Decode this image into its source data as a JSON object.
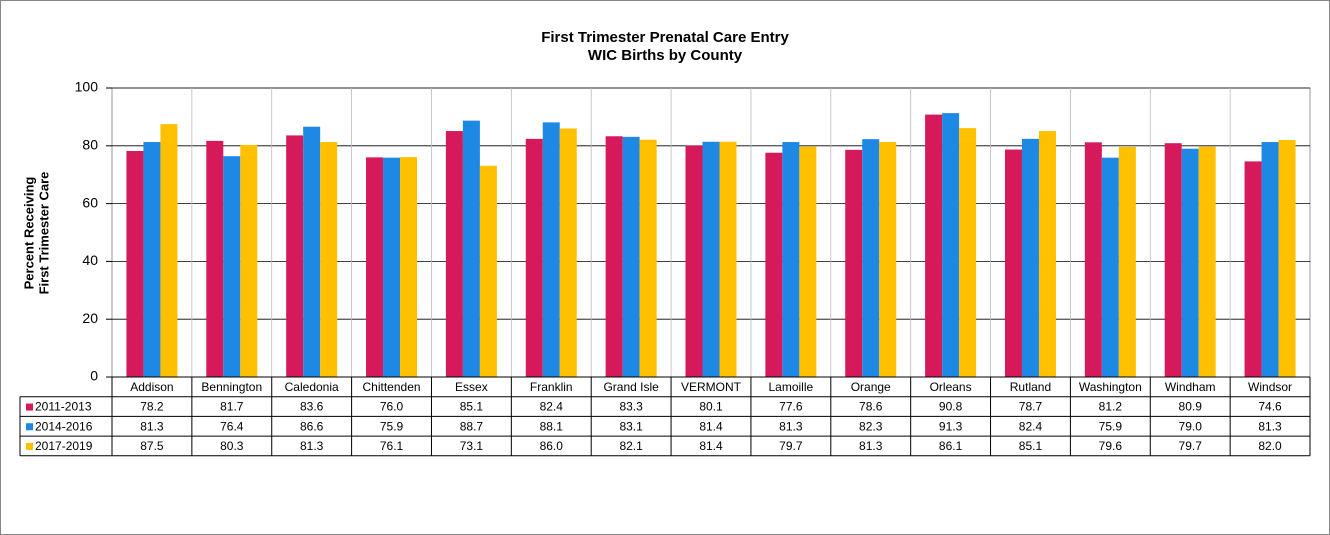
{
  "chart_data": {
    "type": "bar",
    "title": "First Trimester Prenatal Care Entry",
    "subtitle": "WIC Births by County",
    "ylabel": [
      "Percent Receiving",
      "First Trimester Care"
    ],
    "categories": [
      "Addison",
      "Bennington",
      "Caledonia",
      "Chittenden",
      "Essex",
      "Franklin",
      "Grand Isle",
      "VERMONT",
      "Lamoille",
      "Orange",
      "Orleans",
      "Rutland",
      "Washington",
      "Windham",
      "Windsor"
    ],
    "series": [
      {
        "name": "2011-2013",
        "color": "#d6195b",
        "values": [
          78.2,
          81.7,
          83.6,
          76.0,
          85.1,
          82.4,
          83.3,
          80.1,
          77.6,
          78.6,
          90.8,
          78.7,
          81.2,
          80.9,
          74.6
        ],
        "value_labels": [
          "78.2",
          "81.7",
          "83.6",
          "76.0",
          "85.1",
          "82.4",
          "83.3",
          "80.1",
          "77.6",
          "78.6",
          "90.8",
          "78.7",
          "81.2",
          "80.9",
          "74.6"
        ]
      },
      {
        "name": "2014-2016",
        "color": "#1e88e5",
        "values": [
          81.3,
          76.4,
          86.6,
          75.9,
          88.7,
          88.1,
          83.1,
          81.4,
          81.3,
          82.3,
          91.3,
          82.4,
          75.9,
          79.0,
          81.3
        ],
        "value_labels": [
          "81.3",
          "76.4",
          "86.6",
          "75.9",
          "88.7",
          "88.1",
          "83.1",
          "81.4",
          "81.3",
          "82.3",
          "91.3",
          "82.4",
          "75.9",
          "79.0",
          "81.3"
        ]
      },
      {
        "name": "2017-2019",
        "color": "#ffc000",
        "values": [
          87.5,
          80.3,
          81.3,
          76.1,
          73.1,
          86.0,
          82.1,
          81.4,
          79.7,
          81.3,
          86.1,
          85.1,
          79.6,
          79.7,
          82.0
        ],
        "value_labels": [
          "87.5",
          "80.3",
          "81.3",
          "76.1",
          "73.1",
          "86.0",
          "82.1",
          "81.4",
          "79.7",
          "81.3",
          "86.1",
          "85.1",
          "79.6",
          "79.7",
          "82.0"
        ]
      }
    ],
    "ylim": [
      0,
      100
    ],
    "yticks": [
      0,
      20,
      40,
      60,
      80,
      100
    ],
    "grid": true
  }
}
